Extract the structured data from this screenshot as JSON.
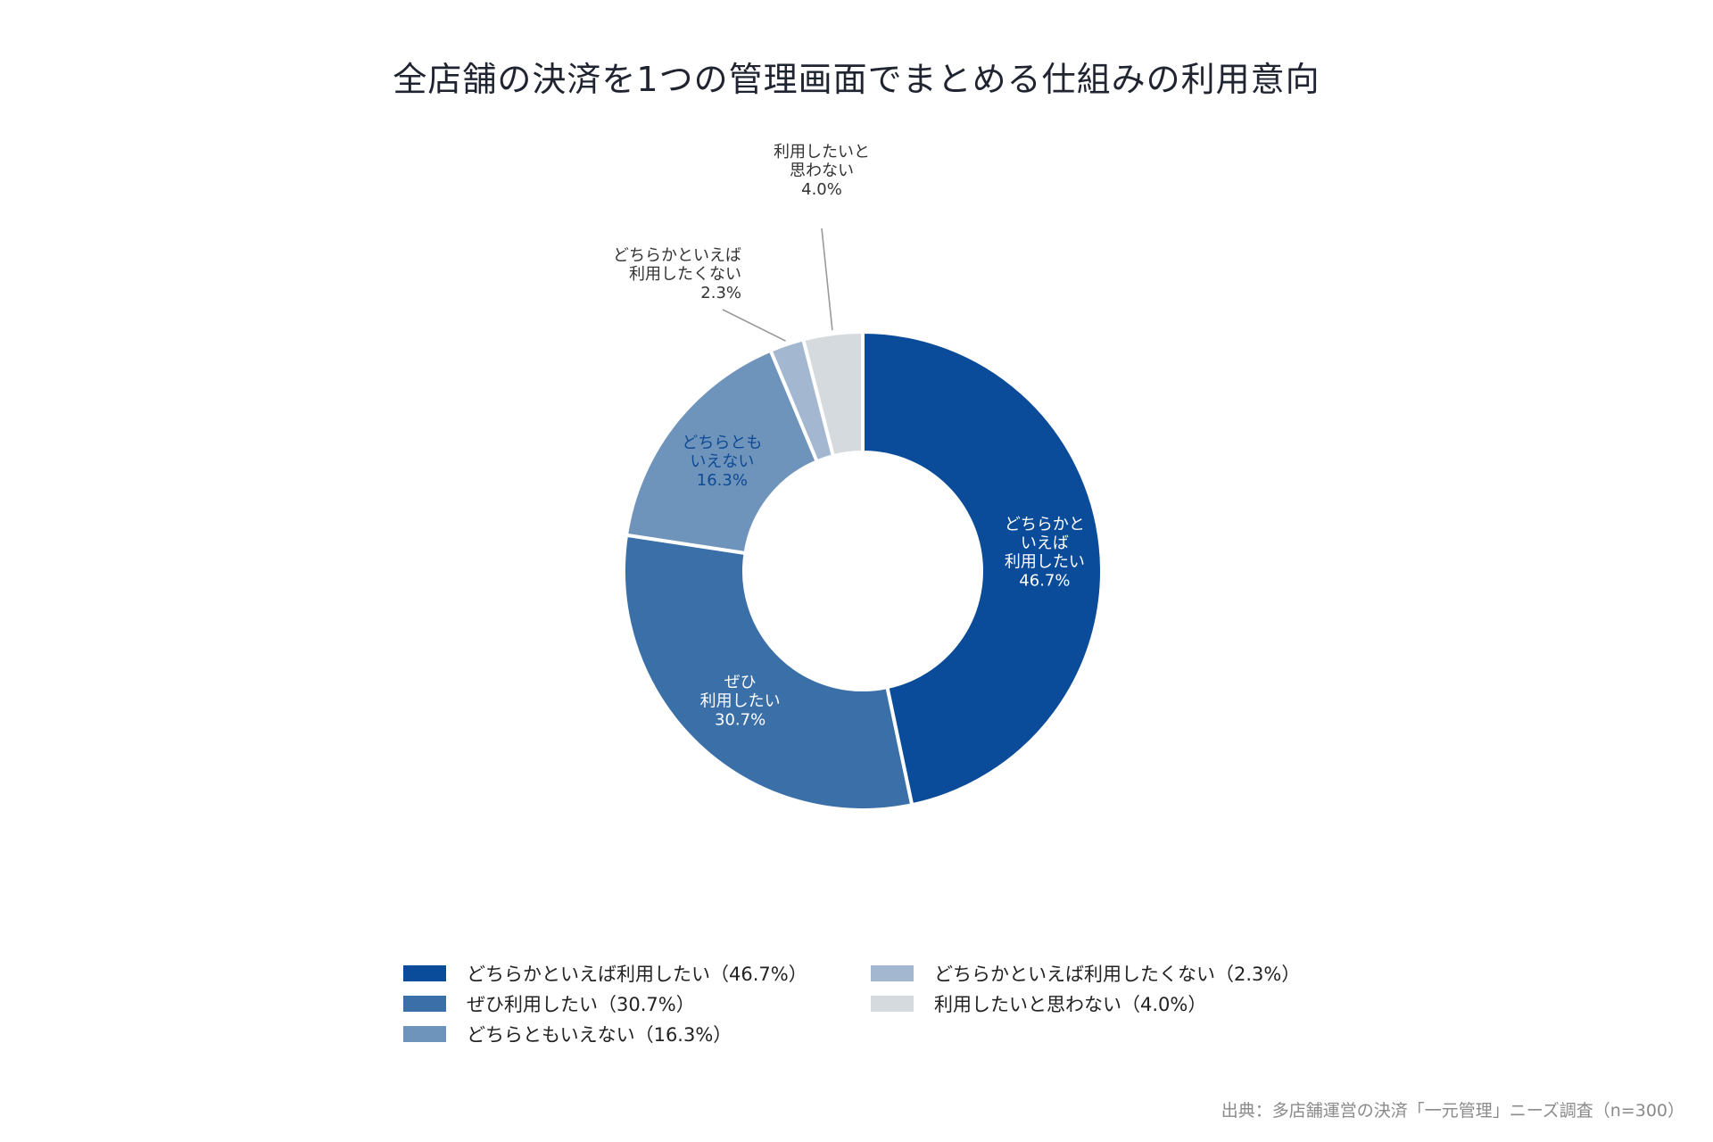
{
  "chart_data": {
    "type": "donut",
    "title": "全店舗の決済を1つの管理画面でまとめる仕組みの利用意向",
    "slices": [
      {
        "name": "どちらかといえば利用したい",
        "value": 46.7,
        "color": "#0b4c9a",
        "label_lines": [
          "どちらかと",
          "いえば",
          "利用したい",
          "46.7%"
        ],
        "label_color": "#ffffff",
        "legend": "どちらかといえば利用したい（46.7%）"
      },
      {
        "name": "ぜひ利用したい",
        "value": 30.7,
        "color": "#3a6fa8",
        "label_lines": [
          "ぜひ",
          "利用したい",
          "30.7%"
        ],
        "label_color": "#ffffff",
        "legend": "ぜひ利用したい（30.7%）"
      },
      {
        "name": "どちらともいえない",
        "value": 16.3,
        "color": "#6f94bb",
        "label_lines": [
          "どちらとも",
          "いえない",
          "16.3%"
        ],
        "label_color": "#0d4a94",
        "legend": "どちらともいえない（16.3%）"
      },
      {
        "name": "どちらかといえば利用したくない",
        "value": 2.3,
        "color": "#a3b8d0",
        "label_lines": [
          "どちらかといえば",
          "利用したくない",
          "2.3%"
        ],
        "label_color": "#333333",
        "legend": "どちらかといえば利用したくない（2.3%）"
      },
      {
        "name": "利用したいと思わない",
        "value": 4.0,
        "color": "#d5dade",
        "label_lines": [
          "利用したいと",
          "思わない",
          "4.0%"
        ],
        "label_color": "#333333",
        "legend": "利用したいと思わない（4.0%）"
      }
    ],
    "start": "12 o'clock",
    "direction": "clockwise",
    "legend_position": "bottom",
    "legend_order": [
      0,
      3,
      1,
      4,
      2
    ]
  },
  "source_note": "出典：多店舗運営の決済「一元管理」ニーズ調査（n=300）"
}
